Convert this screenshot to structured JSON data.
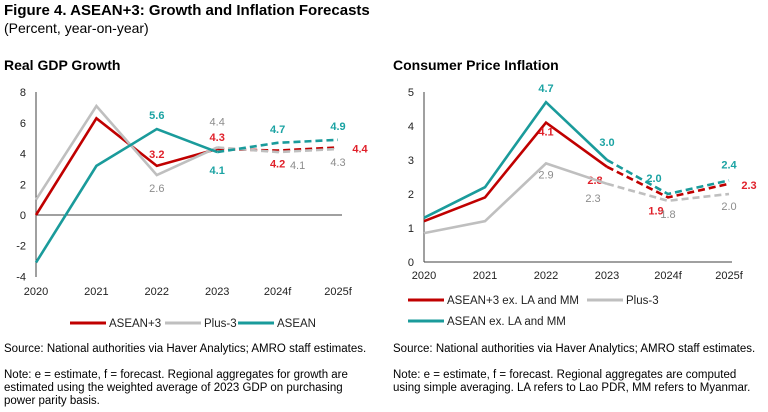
{
  "header": {
    "title": "Figure 4. ASEAN+3: Growth and Inflation Forecasts",
    "subtitle": "(Percent, year-on-year)"
  },
  "colors": {
    "red": "#C00000",
    "gray": "#BFBFBF",
    "teal": "#1A9B9B",
    "label_red": "#E0202A",
    "label_gray": "#8C8C8C",
    "label_teal": "#1BA3A3"
  },
  "chart_data": [
    {
      "type": "line",
      "title": "Real GDP Growth",
      "categories": [
        "2020",
        "2021",
        "2022",
        "2023",
        "2024f",
        "2025f"
      ],
      "ylim": [
        -4,
        8
      ],
      "yticks": [
        "-4",
        "-2",
        "0",
        "2",
        "4",
        "6",
        "8"
      ],
      "forecast_from": "2023",
      "legend": "bottom",
      "series": [
        {
          "name": "ASEAN+3",
          "color": "red",
          "values": [
            0,
            6.3,
            3.2,
            4.3,
            4.2,
            4.4
          ],
          "labels": [
            "",
            "",
            "3.2",
            "4.3",
            "4.2",
            "4.4"
          ]
        },
        {
          "name": "Plus-3",
          "color": "gray",
          "values": [
            1.0,
            7.1,
            2.6,
            4.4,
            4.1,
            4.3
          ],
          "labels": [
            "",
            "",
            "2.6",
            "4.4",
            "4.1",
            "4.3"
          ]
        },
        {
          "name": "ASEAN",
          "color": "teal",
          "values": [
            -3.1,
            3.2,
            5.6,
            4.1,
            4.7,
            4.9
          ],
          "labels": [
            "",
            "",
            "5.6",
            "4.1",
            "4.7",
            "4.9"
          ]
        }
      ],
      "source": "Source: National authorities via Haver Analytics; AMRO staff estimates.",
      "note": "Note: e = estimate, f = forecast. Regional aggregates for growth are estimated using the weighted average of 2023 GDP on purchasing power parity basis."
    },
    {
      "type": "line",
      "title": "Consumer Price Inflation",
      "categories": [
        "2020",
        "2021",
        "2022",
        "2023",
        "2024f",
        "2025f"
      ],
      "ylim": [
        0,
        5
      ],
      "yticks": [
        "0",
        "1",
        "2",
        "3",
        "4",
        "5"
      ],
      "forecast_from": "2023",
      "legend": "bottom",
      "series": [
        {
          "name": "ASEAN+3 ex. LA and MM",
          "color": "red",
          "values": [
            1.2,
            1.9,
            4.1,
            2.8,
            1.9,
            2.3
          ],
          "labels": [
            "",
            "",
            "4.1",
            "2.8",
            "1.9",
            "2.3"
          ]
        },
        {
          "name": "Plus-3",
          "color": "gray",
          "values": [
            0.85,
            1.2,
            2.9,
            2.3,
            1.8,
            2.0
          ],
          "labels": [
            "",
            "",
            "2.9",
            "2.3",
            "1.8",
            "2.0"
          ]
        },
        {
          "name": "ASEAN ex. LA and MM",
          "color": "teal",
          "values": [
            1.3,
            2.2,
            4.7,
            3.0,
            2.0,
            2.4
          ],
          "labels": [
            "",
            "",
            "4.7",
            "3.0",
            "2.0",
            "2.4"
          ]
        }
      ],
      "source": "Source: National authorities via Haver Analytics; AMRO staff estimates.",
      "note": "Note: e = estimate, f = forecast. Regional aggregates are computed using simple averaging. LA refers to Lao PDR, MM refers to Myanmar."
    }
  ]
}
